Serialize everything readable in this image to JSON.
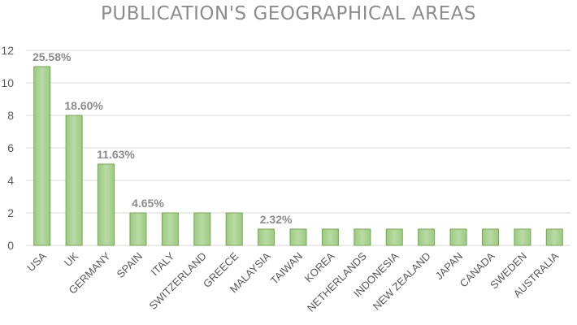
{
  "chart_data": {
    "type": "bar",
    "title": "PUBLICATION'S GEOGRAPHICAL AREAS",
    "xlabel": "",
    "ylabel": "",
    "ylim": [
      0,
      12
    ],
    "yticks": [
      0,
      2,
      4,
      6,
      8,
      10,
      12
    ],
    "grid": true,
    "legend": "none",
    "colors": {
      "bar_fill": "#a9d08e",
      "bar_stroke": "#70ad47",
      "grid": "#d9d9d9"
    },
    "categories": [
      "USA",
      "UK",
      "GERMANY",
      "SPAIN",
      "ITALY",
      "SWITZERLAND",
      "GREECE",
      "MALAYSIA",
      "TAIWAN",
      "KOREA",
      "NETHERLANDS",
      "INDONESIA",
      "NEW ZEALAND",
      "JAPAN",
      "CANADA",
      "SWEDEN",
      "AUSTRALIA"
    ],
    "values": [
      11,
      8,
      5,
      2,
      2,
      2,
      2,
      1,
      1,
      1,
      1,
      1,
      1,
      1,
      1,
      1,
      1
    ],
    "data_labels": [
      "25.58%",
      "18.60%",
      "11.63%",
      "4.65%",
      "",
      "",
      "",
      "2.32%",
      "",
      "",
      "",
      "",
      "",
      "",
      "",
      "",
      ""
    ]
  }
}
